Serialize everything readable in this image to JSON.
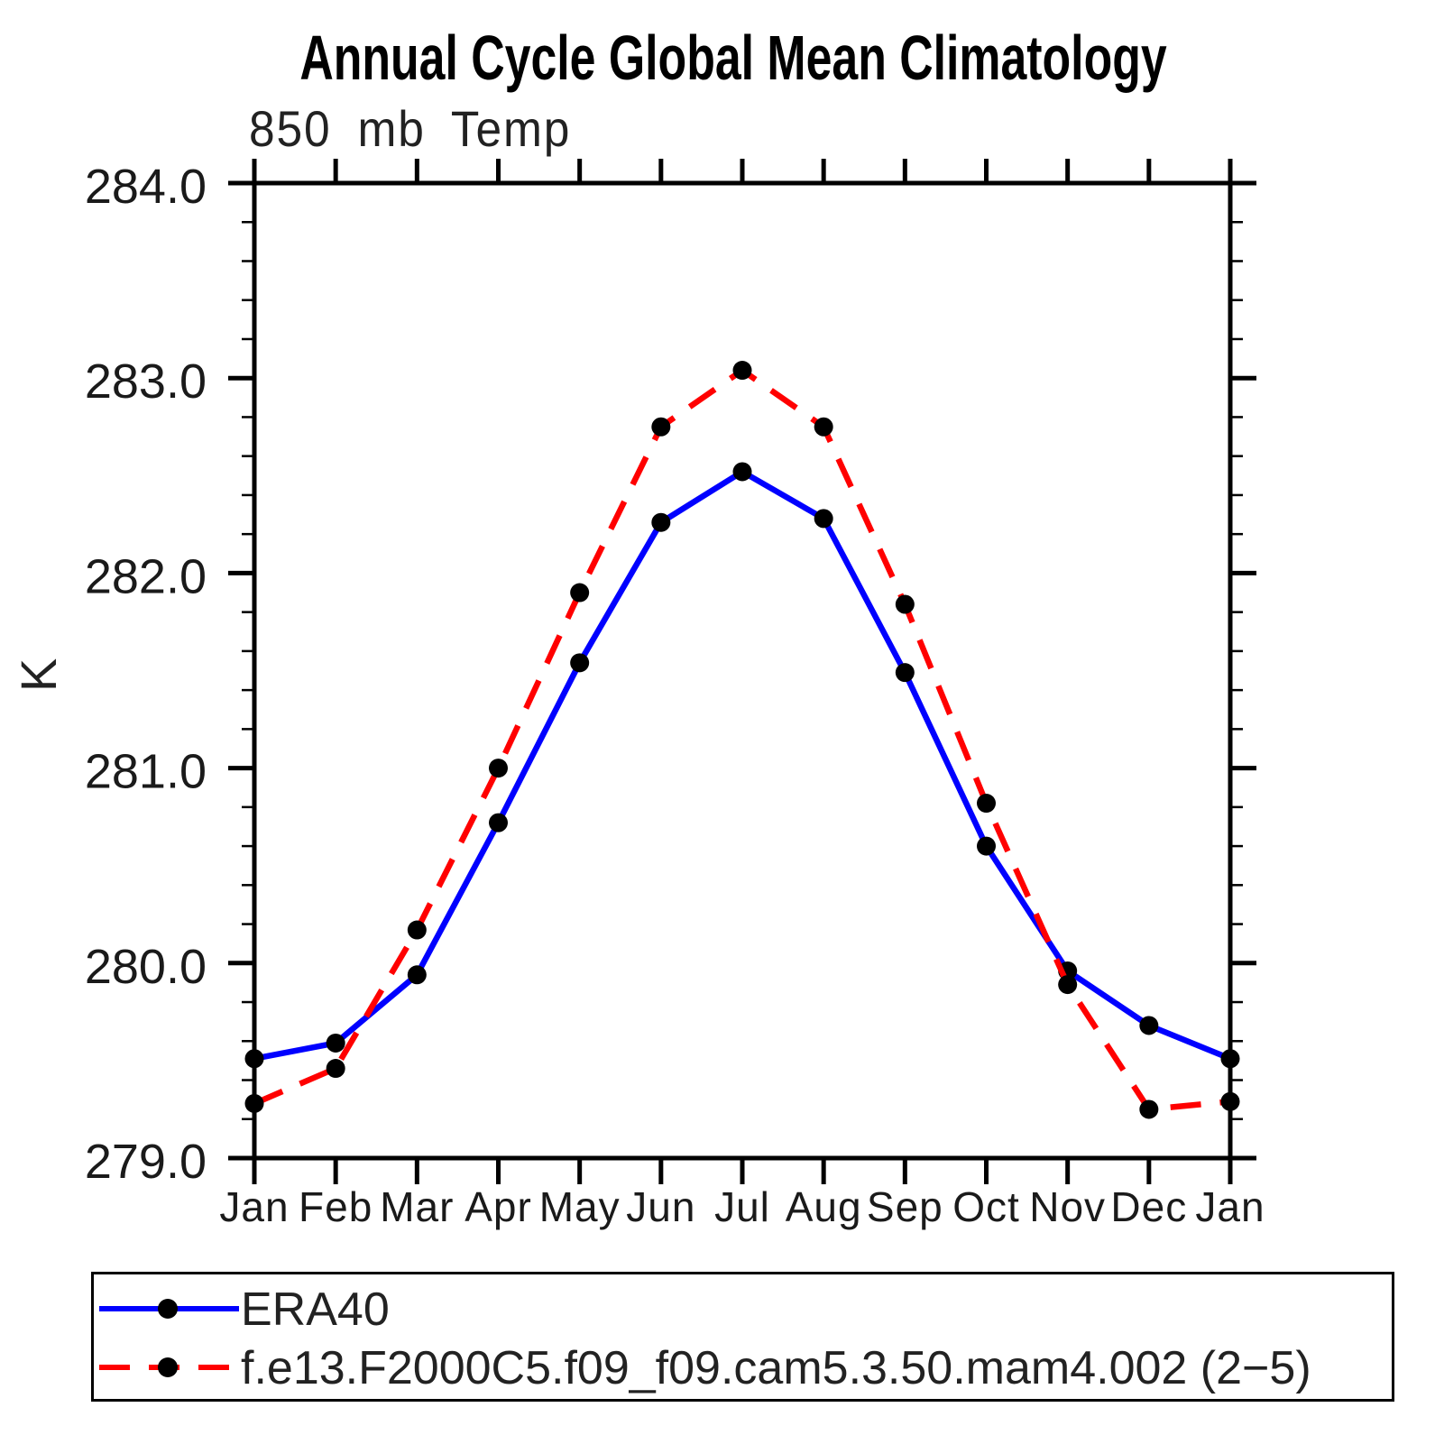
{
  "page": {
    "background": "#ffffff",
    "text_color": "#000000"
  },
  "chart_data": {
    "type": "line",
    "title": "Annual Cycle Global Mean Climatology",
    "subtitle": "850 mb Temp",
    "xlabel": "",
    "ylabel": "K",
    "categories": [
      "Jan",
      "Feb",
      "Mar",
      "Apr",
      "May",
      "Jun",
      "Jul",
      "Aug",
      "Sep",
      "Oct",
      "Nov",
      "Dec",
      "Jan"
    ],
    "ylim": [
      279.0,
      284.0
    ],
    "y_tick_labels": [
      "284.0",
      "283.0",
      "282.0",
      "281.0",
      "280.0",
      "279.0"
    ],
    "y_major_ticks": [
      284.0,
      283.0,
      282.0,
      281.0,
      280.0,
      279.0
    ],
    "y_minor_step": 0.2,
    "grid": false,
    "frame": "box-with-outward-ticks",
    "legend_position": "bottom-left-box",
    "series": [
      {
        "name": "ERA40",
        "color": "#0000ff",
        "line_style": "solid",
        "marker": "filled-circle",
        "marker_color": "#000000",
        "values": [
          279.51,
          279.59,
          279.94,
          280.72,
          281.54,
          282.26,
          282.52,
          282.28,
          281.49,
          280.6,
          279.96,
          279.68,
          279.51
        ]
      },
      {
        "name": "f.e13.F2000C5.f09_f09.cam5.3.50.mam4.002 (2−5)",
        "color": "#ff0000",
        "line_style": "dashed",
        "marker": "filled-circle",
        "marker_color": "#000000",
        "values": [
          279.28,
          279.46,
          280.17,
          281.0,
          281.9,
          282.75,
          283.04,
          282.75,
          281.84,
          280.82,
          279.89,
          279.25,
          279.29
        ]
      }
    ]
  }
}
